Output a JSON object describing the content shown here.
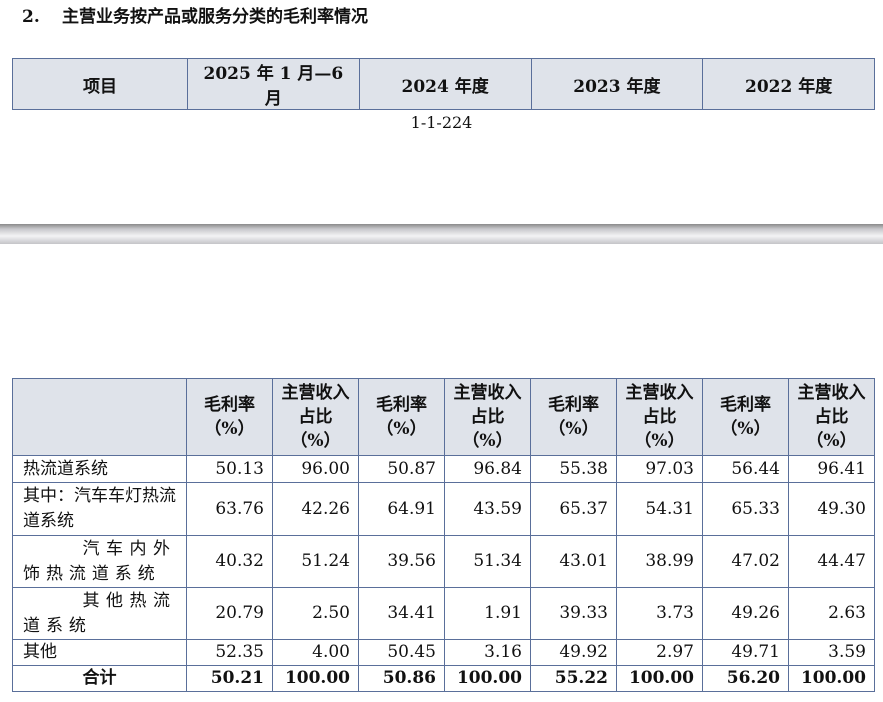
{
  "heading": {
    "number": "2.",
    "title": "主营业务按产品或服务分类的毛利率情况"
  },
  "top_table": {
    "headers": [
      "项目",
      "2025 年 1 月—6 月",
      "2024 年度",
      "2023 年度",
      "2022 年度"
    ]
  },
  "page_number": "1-1-224",
  "table": {
    "subheaders": [
      "毛利率（%）",
      "主营收入占比（%）",
      "毛利率（%）",
      "主营收入占比（%）",
      "毛利率（%）",
      "主营收入占比（%）",
      "毛利率（%）",
      "主营收入占比（%）"
    ],
    "rows": [
      {
        "label": "热流道系统",
        "values": [
          "50.13",
          "96.00",
          "50.87",
          "96.84",
          "55.38",
          "97.03",
          "56.44",
          "96.41"
        ]
      },
      {
        "label": "其中：汽车车灯热流道系统",
        "values": [
          "63.76",
          "42.26",
          "64.91",
          "43.59",
          "65.37",
          "54.31",
          "65.33",
          "49.30"
        ]
      },
      {
        "label": "汽车内外饰热流道系统",
        "values": [
          "40.32",
          "51.24",
          "39.56",
          "51.34",
          "43.01",
          "38.99",
          "47.02",
          "44.47"
        ]
      },
      {
        "label": "其他热流道系统",
        "values": [
          "20.79",
          "2.50",
          "34.41",
          "1.91",
          "39.33",
          "3.73",
          "49.26",
          "2.63"
        ]
      },
      {
        "label": "其他",
        "values": [
          "52.35",
          "4.00",
          "50.45",
          "3.16",
          "49.92",
          "2.97",
          "49.71",
          "3.59"
        ]
      },
      {
        "label": "合计",
        "values": [
          "50.21",
          "100.00",
          "50.86",
          "100.00",
          "55.22",
          "100.00",
          "56.20",
          "100.00"
        ]
      }
    ]
  }
}
